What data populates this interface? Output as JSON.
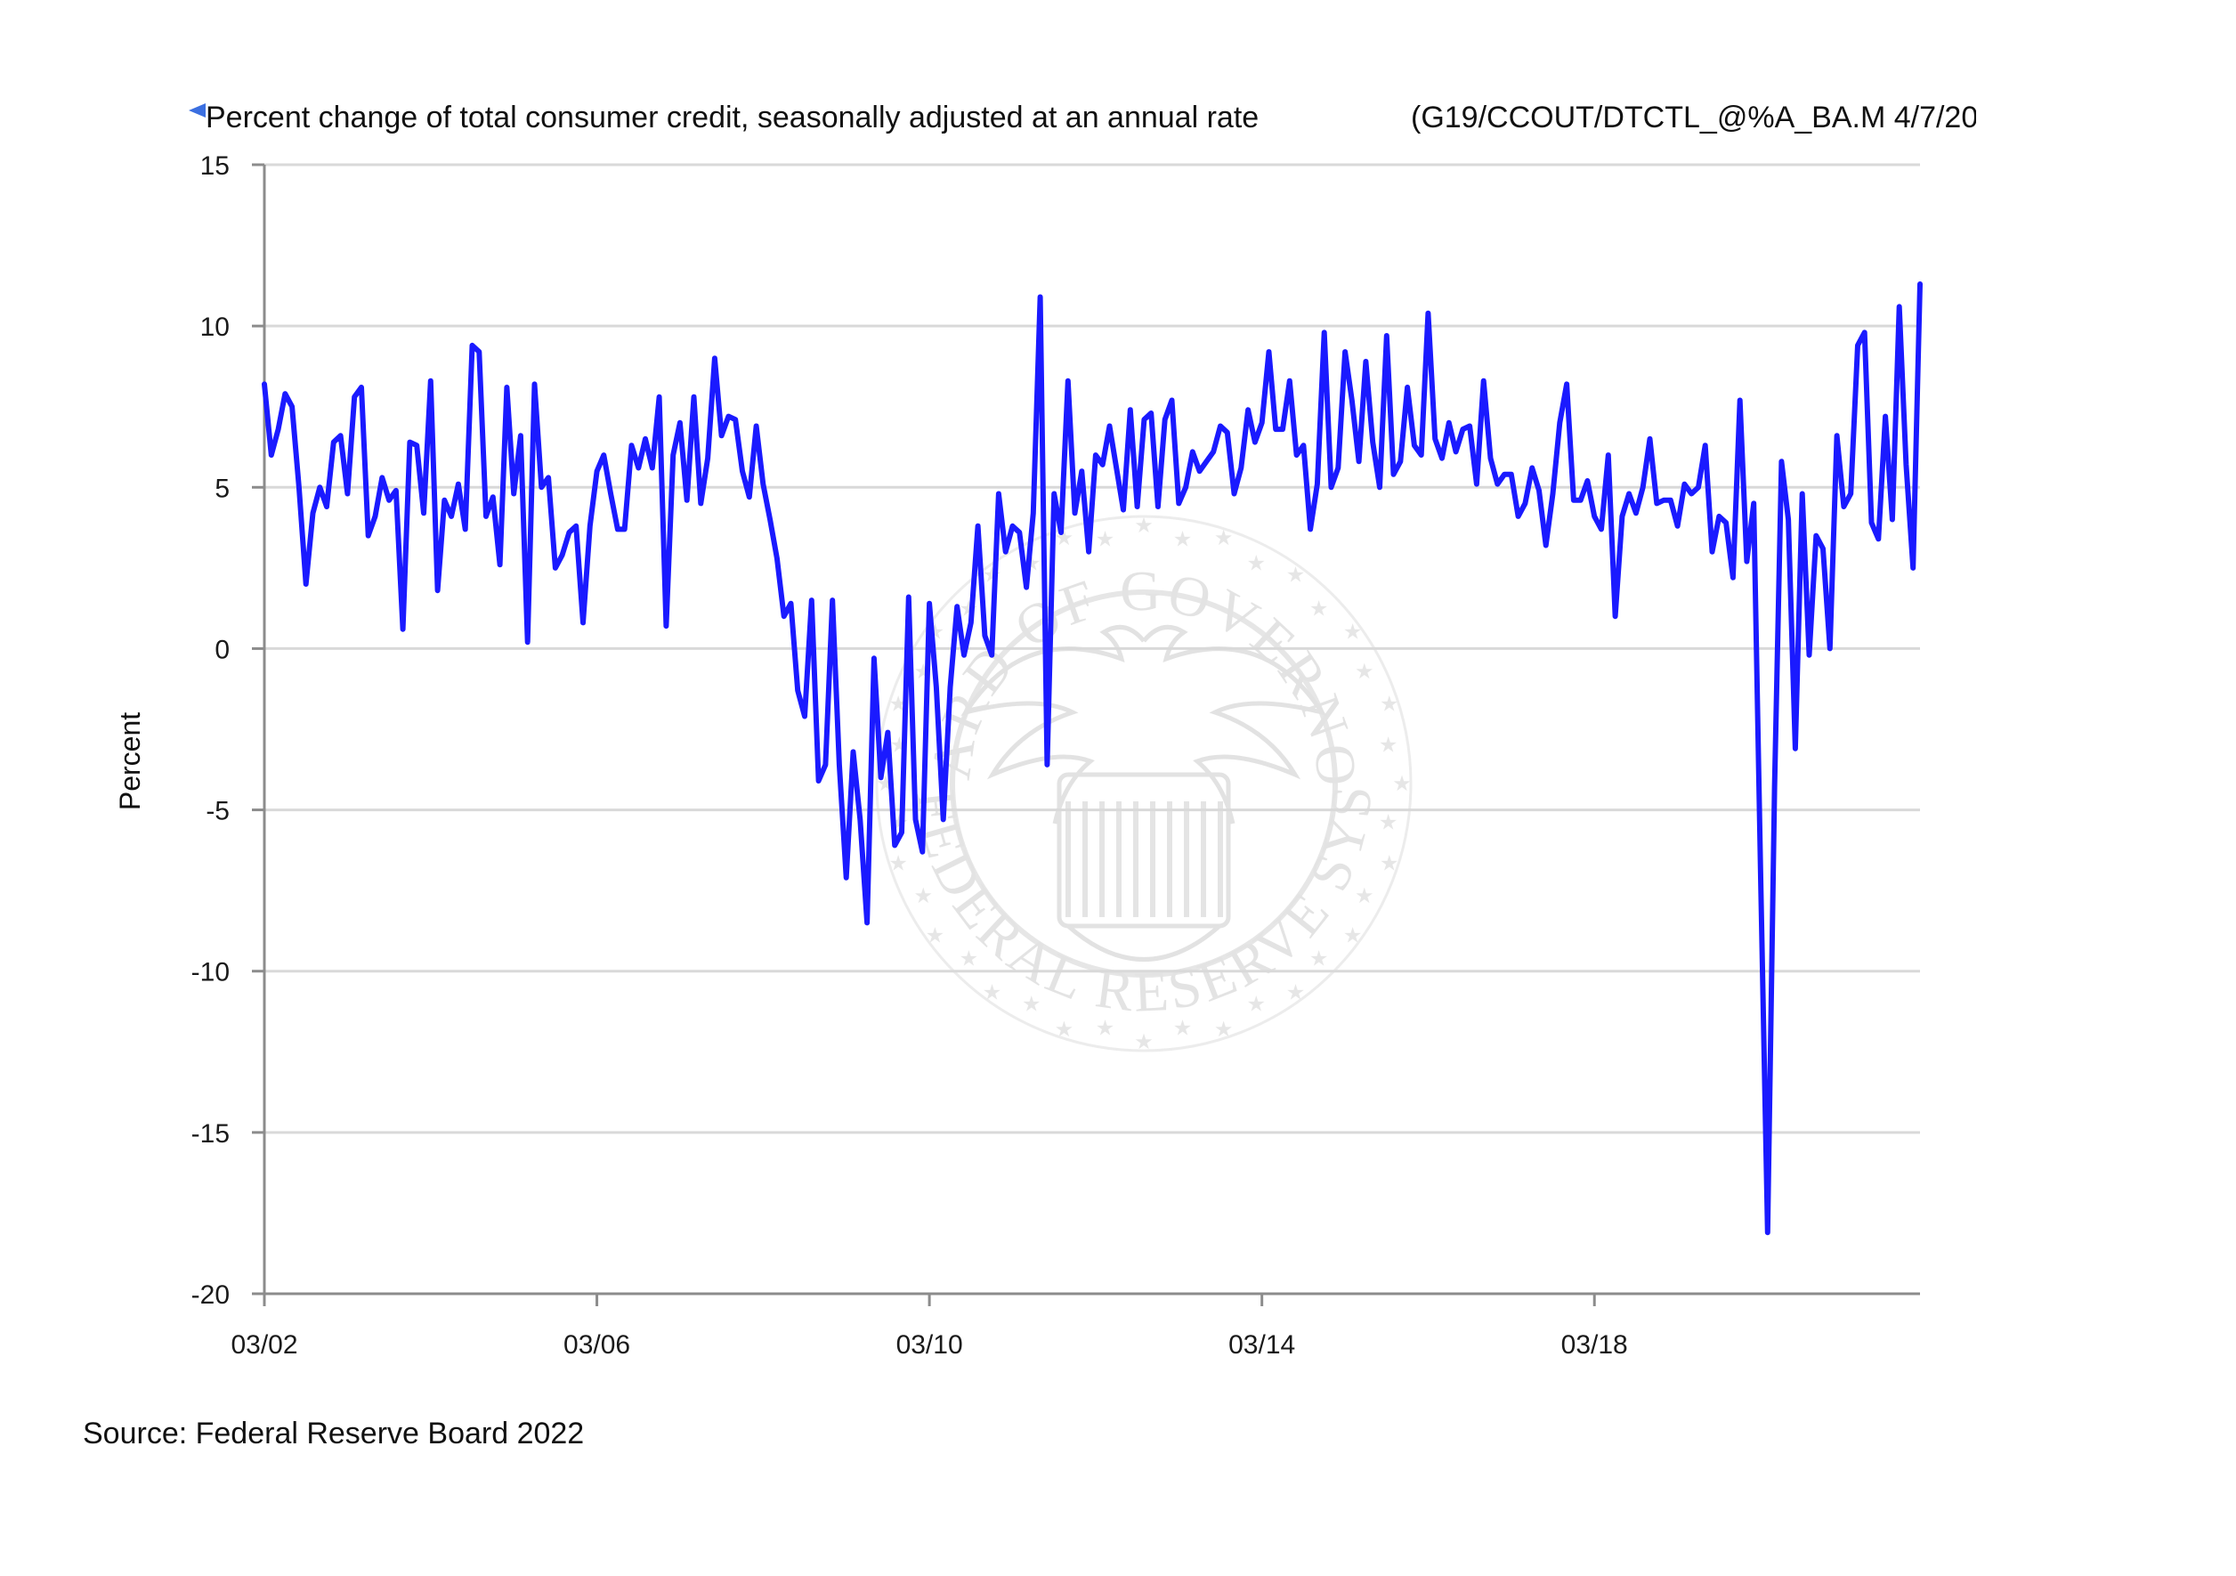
{
  "chart_data": {
    "type": "line",
    "title": "Percent change of total consumer credit, seasonally adjusted at an annual rate",
    "series_code": "(G19/CCOUT/DTCTL_@%A_BA.M 4/7/20",
    "ylabel": "Percent",
    "xlabel": "",
    "ylim": [
      -20,
      15
    ],
    "y_ticks": [
      15,
      10,
      5,
      0,
      -5,
      -10,
      -15,
      -20
    ],
    "x_tick_labels": [
      "03/02",
      "03/06",
      "03/10",
      "03/14",
      "03/18"
    ],
    "grid": "horizontal",
    "legend": "none",
    "colors": {
      "series": "#1a1aff",
      "grid": "#d9d9d9",
      "axis": "#8c8c8c",
      "marker": "#3b6fe0",
      "watermark": "#e5e5e5"
    },
    "series": [
      {
        "frequency": "monthly",
        "start": "2002-03",
        "values": [
          8.2,
          6.0,
          6.8,
          7.9,
          7.5,
          5.0,
          2.0,
          4.2,
          5.0,
          4.4,
          6.4,
          6.6,
          4.8,
          7.8,
          8.1,
          3.5,
          4.1,
          5.3,
          4.6,
          4.9,
          0.6,
          6.4,
          6.3,
          4.2,
          8.3,
          1.8,
          4.6,
          4.1,
          5.1,
          3.7,
          9.4,
          9.2,
          4.1,
          4.7,
          2.6,
          8.1,
          4.8,
          6.6,
          0.2,
          8.2,
          5.0,
          5.3,
          2.5,
          2.9,
          3.6,
          3.8,
          0.8,
          3.8,
          5.5,
          6.0,
          4.8,
          3.7,
          3.7,
          6.3,
          5.6,
          6.5,
          5.6,
          7.8,
          0.7,
          6.0,
          7.0,
          4.6,
          7.8,
          4.5,
          5.9,
          9.0,
          6.6,
          7.2,
          7.1,
          5.5,
          4.7,
          6.9,
          5.1,
          4.0,
          2.8,
          1.0,
          1.4,
          -1.3,
          -2.1,
          1.5,
          -4.1,
          -3.6,
          1.5,
          -3.6,
          -7.1,
          -3.2,
          -5.3,
          -8.5,
          -0.3,
          -4.0,
          -2.6,
          -6.1,
          -5.7,
          1.6,
          -5.3,
          -6.3,
          1.4,
          -1.2,
          -5.3,
          -1.2,
          1.3,
          -0.2,
          0.8,
          3.8,
          0.4,
          -0.2,
          4.8,
          3.0,
          3.8,
          3.6,
          1.9,
          4.2,
          10.9,
          -3.6,
          4.8,
          3.6,
          8.3,
          4.2,
          5.5,
          3.0,
          6.0,
          5.7,
          6.9,
          5.6,
          4.3,
          7.4,
          4.4,
          7.1,
          7.3,
          4.4,
          7.1,
          7.7,
          4.5,
          5.0,
          6.1,
          5.5,
          5.8,
          6.1,
          6.9,
          6.7,
          4.8,
          5.6,
          7.4,
          6.4,
          7.0,
          9.2,
          6.8,
          6.8,
          8.3,
          6.0,
          6.3,
          3.7,
          5.1,
          9.8,
          5.0,
          5.6,
          9.2,
          7.7,
          5.8,
          8.9,
          6.4,
          5.0,
          9.7,
          5.4,
          5.8,
          8.1,
          6.3,
          6.0,
          10.4,
          6.5,
          5.9,
          7.0,
          6.1,
          6.8,
          6.9,
          5.1,
          8.3,
          5.9,
          5.1,
          5.4,
          5.4,
          4.1,
          4.5,
          5.6,
          4.9,
          3.2,
          4.8,
          7.0,
          8.2,
          4.6,
          4.6,
          5.2,
          4.1,
          3.7,
          6.0,
          1.0,
          4.1,
          4.8,
          4.2,
          5.0,
          6.5,
          4.5,
          4.6,
          4.6,
          3.8,
          5.1,
          4.8,
          5.0,
          6.3,
          3.0,
          4.1,
          3.9,
          2.2,
          7.7,
          2.7,
          4.5,
          -7.1,
          -18.1,
          -4.3,
          5.8,
          4.0,
          -3.1,
          4.8,
          -0.2,
          3.5,
          3.1,
          0.0,
          6.6,
          4.4,
          4.8,
          9.4,
          9.8,
          3.9,
          3.4,
          7.2,
          4.0,
          10.6,
          5.7,
          2.5,
          11.3
        ]
      }
    ]
  },
  "source": "Source: Federal Reserve Board 2022",
  "watermark": {
    "name": "federal-reserve-seal",
    "text_top": "BOARD OF GOVERNORS",
    "text_bottom": "THE FEDERAL RESERVE SYSTEM"
  }
}
